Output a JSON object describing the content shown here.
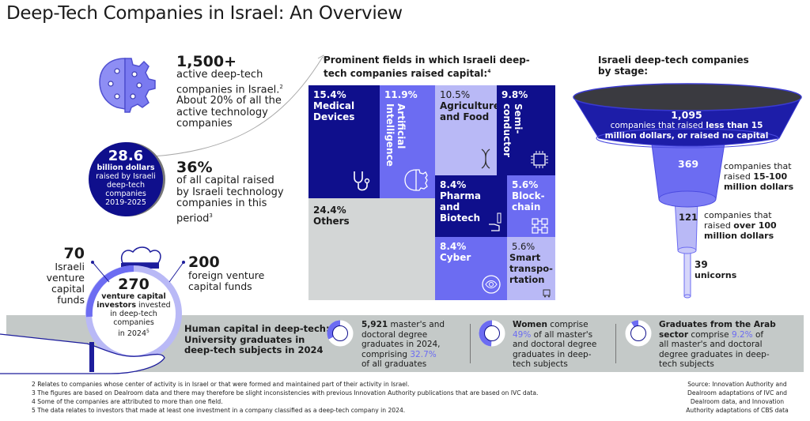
{
  "title": "Deep-Tech Companies in Israel: An Overview",
  "colors": {
    "navy": "#0f0f8c",
    "medium": "#6c6cf2",
    "light": "#b9b9f6",
    "gray": "#d3d6d6",
    "band": "#c4c9c8"
  },
  "stat_companies": {
    "value": "1,500+",
    "line1": "active deep-tech",
    "line2": "companies in Israel.",
    "sup": "2",
    "line3": "About 20% of all the",
    "line4": "active technology",
    "line5": "companies",
    "icon": "brain-gear-icon"
  },
  "stat_capital": {
    "value": "28.6",
    "bold": "billion dollars",
    "l1": "raised by Israeli",
    "l2": "deep-tech",
    "l3": "companies",
    "l4": "2019-2025"
  },
  "stat_share": {
    "value": "36%",
    "l1": "of all capital raised",
    "l2": "by Israeli technology",
    "l3": "companies in this",
    "l4": "period",
    "sup": "3"
  },
  "investors": {
    "israeli_value": "70",
    "israeli_l1": "Israeli",
    "israeli_l2": "venture",
    "israeli_l3": "capital",
    "israeli_l4": "funds",
    "foreign_value": "200",
    "foreign_l1": "foreign venture",
    "foreign_l2": "capital funds",
    "total_value": "270",
    "total_bold1": "venture capital",
    "total_bold2": "investors",
    "total_l1": "invested",
    "total_l2": "in deep-tech",
    "total_l3": "companies",
    "total_l4": "in 2024",
    "total_sup": "5",
    "icon": "money-bag-hand-icon"
  },
  "fields": {
    "title1": "Prominent fields in which Israeli deep-",
    "title2": "tech companies raised capital:",
    "sup": "4",
    "items": [
      {
        "pct": "15.4%",
        "l1": "Medical",
        "l2": "Devices",
        "icon": "stethoscope-icon",
        "value": 15.4
      },
      {
        "pct": "11.9%",
        "l1": "Artificial",
        "l2": "Intelligence",
        "icon": "brain-gear-icon",
        "value": 11.9
      },
      {
        "pct": "10.5%",
        "l1": "Agriculture",
        "l2": "and Food",
        "icon": "dna-icon",
        "value": 10.5
      },
      {
        "pct": "9.8%",
        "l1": "Semi-",
        "l2": "conductor",
        "icon": "chip-icon",
        "value": 9.8
      },
      {
        "pct": "24.4%",
        "l1": "Others",
        "value": 24.4
      },
      {
        "pct": "8.4%",
        "l1": "Pharma",
        "l2": "and",
        "l3": "Biotech",
        "icon": "lab-hand-icon",
        "value": 8.4
      },
      {
        "pct": "5.6%",
        "l1": "Block-",
        "l2": "chain",
        "icon": "blockchain-icon",
        "value": 5.6
      },
      {
        "pct": "8.4%",
        "l1": "Cyber",
        "icon": "eye-icon",
        "value": 8.4
      },
      {
        "pct": "5.6%",
        "l1": "Smart",
        "l2": "transpo-",
        "l3": "rtation",
        "icon": "vehicle-icon",
        "value": 5.6
      }
    ]
  },
  "stages": {
    "title1": "Israeli deep-tech companies",
    "title2": "by stage:",
    "s1": {
      "value": "1,095",
      "pre": "companies that raised ",
      "bold1": "less than 15",
      "bold2": "million dollars, or raised no capital"
    },
    "s2": {
      "value": "369",
      "l1": "companies that",
      "pre": "raised ",
      "bold1": "15-100",
      "bold2": "million dollars"
    },
    "s3": {
      "value": "121",
      "l1": "companies that",
      "pre": "raised ",
      "bold1": "over 100",
      "bold2": "million dollars"
    },
    "s4": {
      "value": "39",
      "l1": "unicorns"
    }
  },
  "human_capital": {
    "title1": "Human capital in deep-tech:",
    "title2": "University graduates in",
    "title3": "deep-tech subjects in 2024",
    "g1": {
      "bold": "5,921",
      "l1": " master's and",
      "l2": "doctoral degree",
      "l3": "graduates in 2024,",
      "l4pre": "comprising ",
      "pct": "32.7%",
      "l5": "of all graduates",
      "value": 32.7
    },
    "g2": {
      "bold": "Women",
      "l1": " comprise",
      "pct": "49%",
      "l2": " of all master's",
      "l3": "and doctoral degree",
      "l4": "graduates in deep-",
      "l5": "tech subjects",
      "value": 49
    },
    "g3": {
      "bold1": "Graduates from the Arab",
      "bold2": "sector",
      "l1": " comprise ",
      "pct": "9.2%",
      "l1b": " of",
      "l2": "all master's and doctoral",
      "l3": "degree graduates in deep-",
      "l4": "tech subjects",
      "value": 9.2
    }
  },
  "footnotes": [
    "2 Relates to companies whose center of activity is in Israel or that were formed and maintained part of their activity in Israel.",
    "3 The figures are based on Dealroom data and there may therefore be slight inconsistencies with previous Innovation Authority publications that are based on IVC data.",
    "4 Some of the companies are attributed to more than one field.",
    "5 The data relates to investors that made at least one investment in a company classified as a deep-tech company in 2024."
  ],
  "source": [
    "Source: Innovation Authority and",
    "Dealroom adaptations of IVC and",
    "Dealroom data, and Innovation",
    "Authority adaptations of CBS data"
  ]
}
